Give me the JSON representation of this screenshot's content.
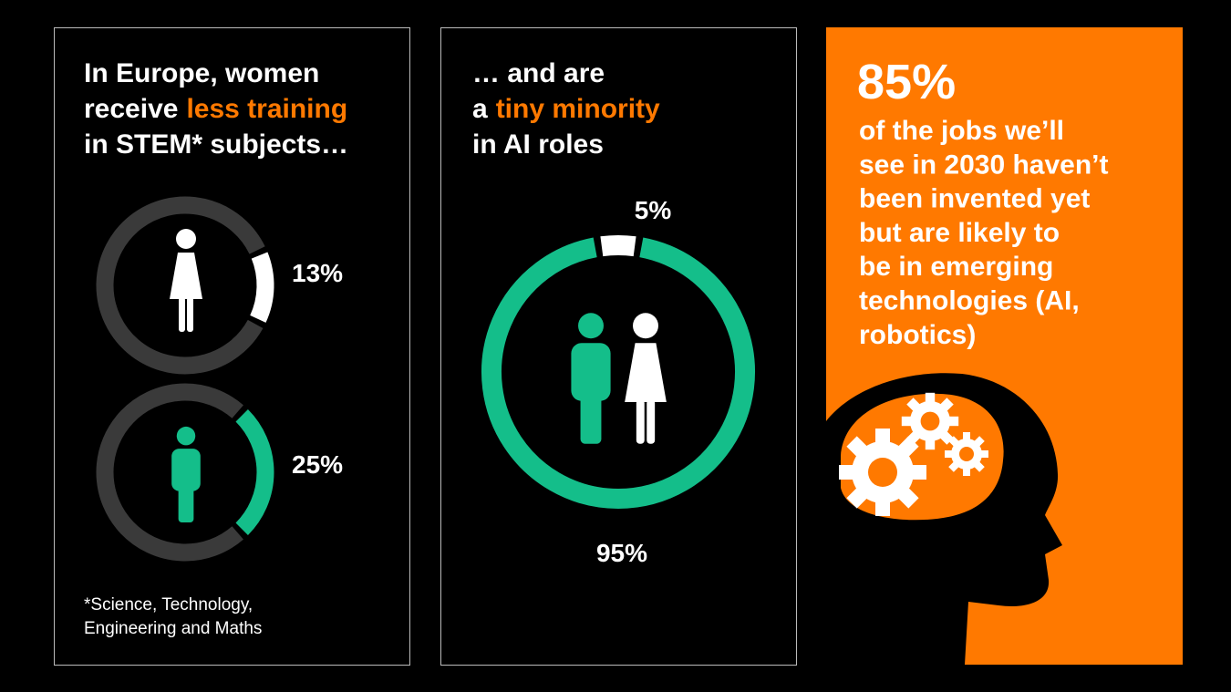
{
  "panels": [
    {
      "title": {
        "line1": "In Europe, women",
        "line2": "receive",
        "highlight": "less training",
        "line3": "in STEM* subjects…"
      },
      "rings": [
        {
          "value": 13,
          "label": "13%"
        },
        {
          "value": 25,
          "label": "25%"
        }
      ],
      "footnote": [
        "*Science, Technology,",
        "Engineering and Maths"
      ]
    },
    {
      "title": {
        "line1": "… and are",
        "line2": "a",
        "highlight": "tiny minority",
        "line3": "in AI roles"
      },
      "ring": [
        {
          "value": 5,
          "label": "5%"
        },
        {
          "value": 95,
          "label": "95%"
        }
      ]
    },
    {
      "stat": "85%",
      "body": [
        "of the jobs we’ll",
        "see in 2030 haven’t",
        "been invented yet",
        "but are likely to",
        "be in emerging",
        "technologies (AI,",
        "robotics)"
      ]
    }
  ]
}
